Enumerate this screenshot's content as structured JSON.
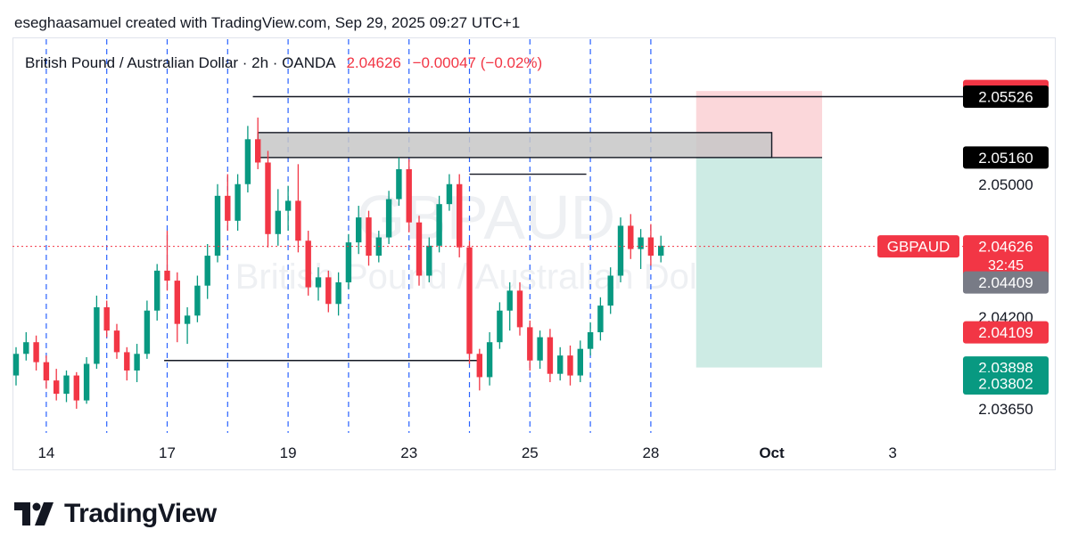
{
  "header": {
    "credit": "eseghaasamuel created with TradingView.com, Sep 29, 2025 09:27 UTC+1"
  },
  "legend": {
    "symbol_line": "British Pound / Australian Dollar · 2h · OANDA",
    "price": "2.04626",
    "change": "−0.00047 (−0.02%)"
  },
  "watermark": {
    "ticker": "GBPAUD",
    "name": "British Pound / Australian Dollar"
  },
  "branding": {
    "name": "TradingView"
  },
  "colors": {
    "up": "#089981",
    "down": "#f23645",
    "grid_dashed": "#2962ff",
    "zone_gray": "#c7c7c7",
    "tp_zone": "#cdebe4",
    "sl_zone": "#fbd7da"
  },
  "chart_data": {
    "type": "candlestick",
    "title": "British Pound / Australian Dollar · 2h · OANDA",
    "ylim": [
      2.0358,
      2.057
    ],
    "x_ticks": [
      {
        "label": "14",
        "slot": 3
      },
      {
        "label": "17",
        "slot": 15
      },
      {
        "label": "19",
        "slot": 27
      },
      {
        "label": "23",
        "slot": 39
      },
      {
        "label": "25",
        "slot": 51
      },
      {
        "label": "28",
        "slot": 63
      },
      {
        "label": "Oct",
        "slot": 75,
        "bold": true
      },
      {
        "label": "3",
        "slot": 87
      }
    ],
    "y_ticks": [
      "2.05000",
      "2.04200",
      "2.03650"
    ],
    "price_labels": [
      {
        "value": "2.05560",
        "style": "red"
      },
      {
        "value": "2.05526",
        "style": "black"
      },
      {
        "value": "2.05160",
        "style": "black"
      },
      {
        "value": "2.04626",
        "style": "red",
        "sub": "32:45"
      },
      {
        "value": "2.04409",
        "style": "gray"
      },
      {
        "value": "2.04109",
        "style": "red"
      },
      {
        "value": "2.03898",
        "style": "green"
      },
      {
        "value": "2.03802",
        "style": "green"
      }
    ],
    "symbol_tag": "GBPAUD",
    "current_price": 2.04626,
    "session_lines_slots": [
      3,
      9,
      15,
      21,
      27,
      33,
      39,
      45,
      51,
      57,
      63
    ],
    "horizontal_levels": [
      {
        "y": 2.05526,
        "from_slot": 23.5,
        "to_slot": 99
      },
      {
        "y": 2.0506,
        "from_slot": 45.0,
        "to_slot": 56.6
      },
      {
        "y": 2.0394,
        "from_slot": 14.7,
        "to_slot": 46.2
      }
    ],
    "rect_zone": {
      "y_top": 2.0531,
      "y_bottom": 2.0516,
      "from_slot": 24.0,
      "to_slot": 75.0
    },
    "position_tool": {
      "entry": 2.0516,
      "stop": 2.0556,
      "target": 2.03898,
      "from_slot": 67.5,
      "to_slot": 80.0
    },
    "candles": [
      [
        2.0385,
        2.0402,
        2.0379,
        2.0398
      ],
      [
        2.0398,
        2.0411,
        2.0394,
        2.0405
      ],
      [
        2.0405,
        2.0409,
        2.0388,
        2.0393
      ],
      [
        2.0393,
        2.0397,
        2.0377,
        2.0382
      ],
      [
        2.0382,
        2.0389,
        2.037,
        2.0374
      ],
      [
        2.0374,
        2.0388,
        2.0369,
        2.0385
      ],
      [
        2.0385,
        2.0387,
        2.0365,
        2.037
      ],
      [
        2.037,
        2.0396,
        2.0368,
        2.0392
      ],
      [
        2.0392,
        2.0433,
        2.0389,
        2.0426
      ],
      [
        2.0426,
        2.043,
        2.0408,
        2.0412
      ],
      [
        2.0412,
        2.0416,
        2.0395,
        2.0399
      ],
      [
        2.0399,
        2.0402,
        2.0382,
        2.0388
      ],
      [
        2.0388,
        2.0404,
        2.0381,
        2.0398
      ],
      [
        2.0398,
        2.043,
        2.0395,
        2.0424
      ],
      [
        2.0424,
        2.0452,
        2.0418,
        2.0448
      ],
      [
        2.0448,
        2.0472,
        2.0436,
        2.0442
      ],
      [
        2.0442,
        2.0447,
        2.0405,
        2.0416
      ],
      [
        2.0416,
        2.0426,
        2.0404,
        2.0421
      ],
      [
        2.0421,
        2.0445,
        2.0417,
        2.0439
      ],
      [
        2.0439,
        2.0464,
        2.0431,
        2.0457
      ],
      [
        2.0457,
        2.05,
        2.0453,
        2.0493
      ],
      [
        2.0493,
        2.0506,
        2.0472,
        2.0478
      ],
      [
        2.0478,
        2.0506,
        2.0472,
        2.05
      ],
      [
        2.05,
        2.0535,
        2.0495,
        2.0527
      ],
      [
        2.0527,
        2.054,
        2.0509,
        2.0513
      ],
      [
        2.0513,
        2.052,
        2.0462,
        2.047
      ],
      [
        2.047,
        2.0497,
        2.0463,
        2.0484
      ],
      [
        2.0484,
        2.0499,
        2.0472,
        2.049
      ],
      [
        2.049,
        2.0512,
        2.0459,
        2.0466
      ],
      [
        2.0466,
        2.0472,
        2.0433,
        2.0438
      ],
      [
        2.0438,
        2.045,
        2.043,
        2.0444
      ],
      [
        2.0444,
        2.0448,
        2.0423,
        2.0428
      ],
      [
        2.0428,
        2.0447,
        2.0421,
        2.0441
      ],
      [
        2.0441,
        2.047,
        2.0437,
        2.0465
      ],
      [
        2.0465,
        2.0487,
        2.0458,
        2.048
      ],
      [
        2.048,
        2.0484,
        2.0451,
        2.0457
      ],
      [
        2.0457,
        2.0472,
        2.0453,
        2.0468
      ],
      [
        2.0468,
        2.0496,
        2.0464,
        2.0491
      ],
      [
        2.0491,
        2.0516,
        2.0487,
        2.0509
      ],
      [
        2.0509,
        2.0515,
        2.0471,
        2.0477
      ],
      [
        2.0477,
        2.0481,
        2.0439,
        2.0445
      ],
      [
        2.0445,
        2.0468,
        2.0441,
        2.0463
      ],
      [
        2.0463,
        2.0493,
        2.0459,
        2.0488
      ],
      [
        2.0488,
        2.0506,
        2.0484,
        2.05
      ],
      [
        2.05,
        2.0506,
        2.0456,
        2.0462
      ],
      [
        2.0462,
        2.0466,
        2.0392,
        2.0398
      ],
      [
        2.0398,
        2.0401,
        2.0376,
        2.0384
      ],
      [
        2.0384,
        2.0411,
        2.0379,
        2.0405
      ],
      [
        2.0405,
        2.0429,
        2.0401,
        2.0424
      ],
      [
        2.0424,
        2.0441,
        2.0412,
        2.0436
      ],
      [
        2.0436,
        2.0441,
        2.0409,
        2.0414
      ],
      [
        2.0414,
        2.0418,
        2.0388,
        2.0394
      ],
      [
        2.0394,
        2.0412,
        2.0389,
        2.0408
      ],
      [
        2.0408,
        2.0413,
        2.0381,
        2.0386
      ],
      [
        2.0386,
        2.0402,
        2.0382,
        2.0397
      ],
      [
        2.0397,
        2.0403,
        2.0379,
        2.0385
      ],
      [
        2.0385,
        2.0406,
        2.0381,
        2.0401
      ],
      [
        2.0401,
        2.0417,
        2.0397,
        2.0411
      ],
      [
        2.0411,
        2.0432,
        2.0406,
        2.0427
      ],
      [
        2.0427,
        2.045,
        2.0422,
        2.0445
      ],
      [
        2.0445,
        2.048,
        2.0441,
        2.0475
      ],
      [
        2.0475,
        2.0482,
        2.0455,
        2.0461
      ],
      [
        2.0461,
        2.0473,
        2.0449,
        2.0468
      ],
      [
        2.0468,
        2.0476,
        2.0451,
        2.0457
      ],
      [
        2.0457,
        2.0469,
        2.0453,
        2.0463
      ]
    ]
  }
}
